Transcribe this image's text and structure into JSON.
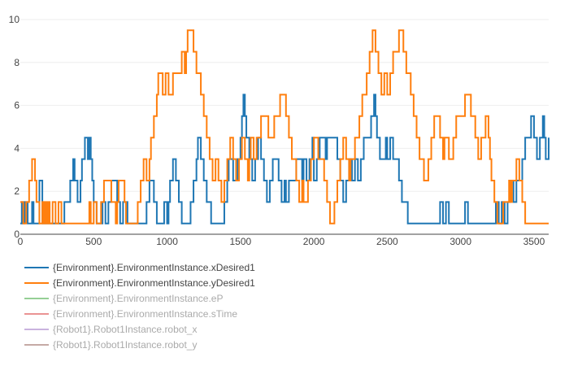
{
  "chart_data": {
    "type": "line",
    "line_shape": "step",
    "xlim": [
      0,
      3600
    ],
    "ylim": [
      0,
      10
    ],
    "x_ticks": [
      0,
      500,
      1000,
      1500,
      2000,
      2500,
      3000,
      3500
    ],
    "y_ticks": [
      0,
      2,
      4,
      6,
      8,
      10
    ],
    "grid": "horizontal",
    "legend_position": "bottom-left",
    "series": [
      {
        "name": "{Environment}.EnvironmentInstance.xDesired1",
        "color": "#1f77b4",
        "visible": true,
        "points": [
          [
            0,
            0.5
          ],
          [
            10,
            1.5
          ],
          [
            20,
            0.5
          ],
          [
            30,
            1.5
          ],
          [
            50,
            0.5
          ],
          [
            80,
            1.5
          ],
          [
            90,
            0.5
          ],
          [
            130,
            2.5
          ],
          [
            150,
            0.5
          ],
          [
            300,
            1.5
          ],
          [
            340,
            2.5
          ],
          [
            360,
            3.5
          ],
          [
            370,
            2.5
          ],
          [
            390,
            1.5
          ],
          [
            410,
            2.5
          ],
          [
            420,
            3.5
          ],
          [
            440,
            4.5
          ],
          [
            460,
            3.5
          ],
          [
            470,
            4.5
          ],
          [
            480,
            3.5
          ],
          [
            490,
            2.5
          ],
          [
            500,
            1.5
          ],
          [
            520,
            0.5
          ],
          [
            560,
            1.5
          ],
          [
            580,
            0.5
          ],
          [
            600,
            1.5
          ],
          [
            620,
            2.5
          ],
          [
            660,
            1.5
          ],
          [
            680,
            0.5
          ],
          [
            700,
            1.5
          ],
          [
            730,
            0.5
          ],
          [
            860,
            1.5
          ],
          [
            880,
            2.5
          ],
          [
            910,
            1.5
          ],
          [
            930,
            0.5
          ],
          [
            980,
            1.5
          ],
          [
            1000,
            0.5
          ],
          [
            1010,
            1.5
          ],
          [
            1020,
            2.5
          ],
          [
            1040,
            3.5
          ],
          [
            1060,
            2.5
          ],
          [
            1080,
            1.5
          ],
          [
            1100,
            0.5
          ],
          [
            1160,
            1.5
          ],
          [
            1180,
            2.5
          ],
          [
            1200,
            3.5
          ],
          [
            1210,
            4.5
          ],
          [
            1230,
            3.5
          ],
          [
            1250,
            2.5
          ],
          [
            1270,
            1.5
          ],
          [
            1300,
            0.5
          ],
          [
            1390,
            1.5
          ],
          [
            1410,
            2.5
          ],
          [
            1420,
            3.5
          ],
          [
            1450,
            2.5
          ],
          [
            1480,
            3.5
          ],
          [
            1500,
            4.5
          ],
          [
            1510,
            5.5
          ],
          [
            1520,
            6.5
          ],
          [
            1530,
            5.5
          ],
          [
            1540,
            4.5
          ],
          [
            1560,
            3.5
          ],
          [
            1580,
            2.5
          ],
          [
            1600,
            3.5
          ],
          [
            1620,
            4.5
          ],
          [
            1640,
            3.5
          ],
          [
            1660,
            2.5
          ],
          [
            1680,
            1.5
          ],
          [
            1700,
            2.5
          ],
          [
            1720,
            3.5
          ],
          [
            1760,
            2.5
          ],
          [
            1780,
            1.5
          ],
          [
            1800,
            2.5
          ],
          [
            1810,
            1.5
          ],
          [
            1830,
            2.5
          ],
          [
            1880,
            3.5
          ],
          [
            1920,
            2.5
          ],
          [
            1930,
            3.5
          ],
          [
            1950,
            2.5
          ],
          [
            1970,
            3.5
          ],
          [
            1990,
            4.5
          ],
          [
            2000,
            2.5
          ],
          [
            2020,
            3.5
          ],
          [
            2040,
            4.5
          ],
          [
            2080,
            3.5
          ],
          [
            2090,
            4.5
          ],
          [
            2160,
            3.5
          ],
          [
            2180,
            2.5
          ],
          [
            2200,
            1.5
          ],
          [
            2220,
            2.5
          ],
          [
            2240,
            3.5
          ],
          [
            2260,
            2.5
          ],
          [
            2280,
            3.5
          ],
          [
            2300,
            2.5
          ],
          [
            2320,
            3.5
          ],
          [
            2340,
            4.5
          ],
          [
            2390,
            5.5
          ],
          [
            2410,
            6.5
          ],
          [
            2420,
            5.5
          ],
          [
            2430,
            4.5
          ],
          [
            2450,
            3.5
          ],
          [
            2490,
            4.5
          ],
          [
            2500,
            3.5
          ],
          [
            2520,
            4.5
          ],
          [
            2540,
            3.5
          ],
          [
            2580,
            2.5
          ],
          [
            2600,
            1.5
          ],
          [
            2640,
            0.5
          ],
          [
            2860,
            1.5
          ],
          [
            2880,
            0.5
          ],
          [
            2900,
            1.5
          ],
          [
            2920,
            0.5
          ],
          [
            3030,
            1.5
          ],
          [
            3050,
            0.5
          ],
          [
            3240,
            1.5
          ],
          [
            3260,
            0.5
          ],
          [
            3280,
            1.5
          ],
          [
            3300,
            0.5
          ],
          [
            3320,
            1.5
          ],
          [
            3340,
            2.5
          ],
          [
            3360,
            1.5
          ],
          [
            3380,
            2.5
          ],
          [
            3420,
            3.5
          ],
          [
            3440,
            4.5
          ],
          [
            3480,
            5.5
          ],
          [
            3500,
            4.5
          ],
          [
            3520,
            3.5
          ],
          [
            3540,
            4.5
          ],
          [
            3560,
            5.5
          ],
          [
            3570,
            4.5
          ],
          [
            3580,
            3.5
          ],
          [
            3600,
            4.5
          ]
        ]
      },
      {
        "name": "{Environment}.EnvironmentInstance.yDesired1",
        "color": "#ff7f0e",
        "visible": true,
        "points": [
          [
            0,
            1.5
          ],
          [
            20,
            0.5
          ],
          [
            40,
            1.5
          ],
          [
            60,
            2.5
          ],
          [
            80,
            3.5
          ],
          [
            100,
            2.5
          ],
          [
            110,
            1.5
          ],
          [
            130,
            0.5
          ],
          [
            150,
            1.5
          ],
          [
            160,
            0.5
          ],
          [
            170,
            1.5
          ],
          [
            180,
            0.5
          ],
          [
            190,
            1.5
          ],
          [
            200,
            0.5
          ],
          [
            220,
            1.5
          ],
          [
            240,
            0.5
          ],
          [
            260,
            1.5
          ],
          [
            280,
            0.5
          ],
          [
            470,
            1.5
          ],
          [
            480,
            0.5
          ],
          [
            500,
            1.5
          ],
          [
            520,
            0.5
          ],
          [
            550,
            1.5
          ],
          [
            570,
            2.5
          ],
          [
            620,
            1.5
          ],
          [
            650,
            0.5
          ],
          [
            660,
            1.5
          ],
          [
            670,
            2.5
          ],
          [
            710,
            1.5
          ],
          [
            720,
            0.5
          ],
          [
            800,
            1.5
          ],
          [
            820,
            2.5
          ],
          [
            840,
            3.5
          ],
          [
            860,
            2.5
          ],
          [
            880,
            3.5
          ],
          [
            890,
            4.5
          ],
          [
            910,
            5.5
          ],
          [
            930,
            6.5
          ],
          [
            940,
            7.5
          ],
          [
            970,
            6.5
          ],
          [
            990,
            7.5
          ],
          [
            1010,
            6.5
          ],
          [
            1040,
            7.5
          ],
          [
            1100,
            8.5
          ],
          [
            1120,
            7.5
          ],
          [
            1130,
            8.5
          ],
          [
            1140,
            9.5
          ],
          [
            1180,
            8.5
          ],
          [
            1200,
            7.5
          ],
          [
            1230,
            6.5
          ],
          [
            1250,
            5.5
          ],
          [
            1270,
            4.5
          ],
          [
            1290,
            3.5
          ],
          [
            1310,
            2.5
          ],
          [
            1330,
            3.5
          ],
          [
            1350,
            2.5
          ],
          [
            1370,
            1.5
          ],
          [
            1390,
            2.5
          ],
          [
            1410,
            3.5
          ],
          [
            1430,
            4.5
          ],
          [
            1450,
            3.5
          ],
          [
            1470,
            2.5
          ],
          [
            1490,
            3.5
          ],
          [
            1510,
            4.5
          ],
          [
            1530,
            3.5
          ],
          [
            1550,
            2.5
          ],
          [
            1560,
            3.5
          ],
          [
            1570,
            4.5
          ],
          [
            1590,
            3.5
          ],
          [
            1610,
            4.5
          ],
          [
            1640,
            5.5
          ],
          [
            1690,
            4.5
          ],
          [
            1730,
            5.5
          ],
          [
            1770,
            6.5
          ],
          [
            1810,
            5.5
          ],
          [
            1830,
            4.5
          ],
          [
            1850,
            3.5
          ],
          [
            1880,
            2.5
          ],
          [
            1900,
            1.5
          ],
          [
            1920,
            2.5
          ],
          [
            1930,
            1.5
          ],
          [
            1960,
            2.5
          ],
          [
            1980,
            3.5
          ],
          [
            2000,
            4.5
          ],
          [
            2030,
            3.5
          ],
          [
            2070,
            2.5
          ],
          [
            2090,
            1.5
          ],
          [
            2110,
            0.5
          ],
          [
            2140,
            1.5
          ],
          [
            2160,
            2.5
          ],
          [
            2180,
            3.5
          ],
          [
            2200,
            4.5
          ],
          [
            2220,
            3.5
          ],
          [
            2240,
            2.5
          ],
          [
            2250,
            3.5
          ],
          [
            2280,
            4.5
          ],
          [
            2310,
            5.5
          ],
          [
            2330,
            6.5
          ],
          [
            2360,
            7.5
          ],
          [
            2380,
            8.5
          ],
          [
            2400,
            9.5
          ],
          [
            2420,
            8.5
          ],
          [
            2440,
            7.5
          ],
          [
            2460,
            6.5
          ],
          [
            2480,
            7.5
          ],
          [
            2500,
            6.5
          ],
          [
            2520,
            7.5
          ],
          [
            2540,
            8.5
          ],
          [
            2580,
            9.5
          ],
          [
            2610,
            8.5
          ],
          [
            2630,
            7.5
          ],
          [
            2660,
            6.5
          ],
          [
            2680,
            5.5
          ],
          [
            2700,
            4.5
          ],
          [
            2720,
            3.5
          ],
          [
            2750,
            2.5
          ],
          [
            2780,
            3.5
          ],
          [
            2800,
            4.5
          ],
          [
            2820,
            5.5
          ],
          [
            2860,
            4.5
          ],
          [
            2880,
            3.5
          ],
          [
            2890,
            4.5
          ],
          [
            2920,
            3.5
          ],
          [
            2950,
            4.5
          ],
          [
            2970,
            5.5
          ],
          [
            3030,
            6.5
          ],
          [
            3070,
            5.5
          ],
          [
            3100,
            4.5
          ],
          [
            3120,
            3.5
          ],
          [
            3140,
            4.5
          ],
          [
            3170,
            5.5
          ],
          [
            3190,
            4.5
          ],
          [
            3200,
            3.5
          ],
          [
            3210,
            2.5
          ],
          [
            3230,
            1.5
          ],
          [
            3250,
            0.5
          ],
          [
            3290,
            1.5
          ],
          [
            3330,
            2.5
          ],
          [
            3340,
            1.5
          ],
          [
            3350,
            2.5
          ],
          [
            3380,
            3.5
          ],
          [
            3400,
            2.5
          ],
          [
            3420,
            1.5
          ],
          [
            3440,
            0.5
          ],
          [
            3600,
            0.5
          ]
        ]
      },
      {
        "name": "{Environment}.EnvironmentInstance.eP",
        "color": "#2ca02c",
        "visible": false
      },
      {
        "name": "{Environment}.EnvironmentInstance.sTime",
        "color": "#d62728",
        "visible": false
      },
      {
        "name": "{Robot1}.Robot1Instance.robot_x",
        "color": "#9467bd",
        "visible": false
      },
      {
        "name": "{Robot1}.Robot1Instance.robot_y",
        "color": "#8c564b",
        "visible": false
      }
    ]
  }
}
